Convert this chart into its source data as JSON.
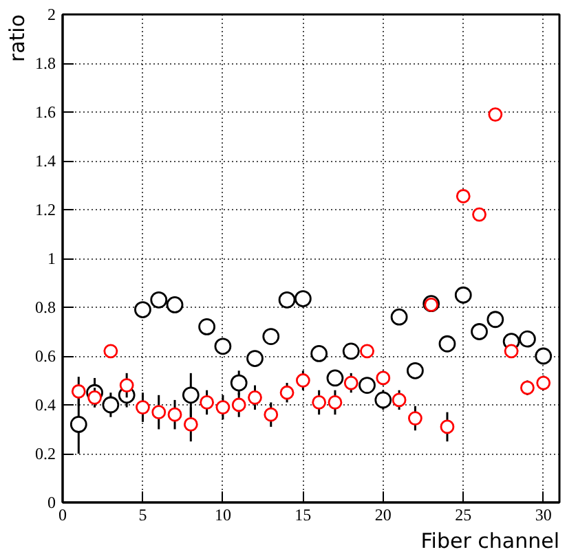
{
  "chart_data": {
    "type": "scatter",
    "xlabel": "Fiber channel",
    "ylabel": "ratio",
    "marker": "circle",
    "grid": true,
    "xlim": [
      0,
      31
    ],
    "ylim": [
      0,
      2
    ],
    "xticks": [
      0,
      5,
      10,
      15,
      20,
      25,
      30
    ],
    "yticks": [
      0,
      0.2,
      0.4,
      0.6,
      0.8,
      1,
      1.2,
      1.4,
      1.6,
      1.8,
      2
    ],
    "x": [
      1,
      2,
      3,
      4,
      5,
      6,
      7,
      8,
      9,
      10,
      11,
      12,
      13,
      14,
      15,
      16,
      17,
      18,
      19,
      20,
      21,
      22,
      23,
      24,
      25,
      26,
      27,
      28,
      29,
      30
    ],
    "series": [
      {
        "color": "#000000",
        "values": [
          0.32,
          0.45,
          0.4,
          0.44,
          0.79,
          0.83,
          0.81,
          0.44,
          0.72,
          0.64,
          0.49,
          0.59,
          0.68,
          0.83,
          0.835,
          0.61,
          0.51,
          0.62,
          0.48,
          0.42,
          0.76,
          0.54,
          0.815,
          0.65,
          0.85,
          0.7,
          0.75,
          0.66,
          0.67,
          0.6
        ],
        "errors": [
          0.12,
          0.06,
          0.05,
          0.05,
          null,
          null,
          null,
          0.09,
          null,
          0.03,
          0.05,
          0.03,
          null,
          null,
          null,
          null,
          0.03,
          null,
          0.03,
          0.04,
          null,
          null,
          null,
          null,
          null,
          null,
          null,
          null,
          null,
          null
        ]
      },
      {
        "color": "#ff0000",
        "values": [
          0.455,
          0.43,
          0.62,
          0.48,
          0.39,
          0.37,
          0.36,
          0.32,
          0.41,
          0.39,
          0.4,
          0.43,
          0.36,
          0.45,
          0.5,
          0.41,
          0.41,
          0.49,
          0.62,
          0.51,
          0.42,
          0.345,
          0.81,
          0.31,
          1.255,
          1.18,
          1.59,
          0.62,
          0.47,
          0.49
        ],
        "errors": [
          0.06,
          0.04,
          null,
          0.05,
          0.06,
          0.07,
          0.06,
          0.07,
          0.05,
          0.05,
          0.05,
          0.05,
          0.05,
          0.04,
          0.04,
          0.05,
          0.05,
          0.04,
          null,
          0.03,
          0.04,
          0.05,
          null,
          0.06,
          null,
          null,
          null,
          null,
          0.03,
          0.03
        ]
      }
    ]
  }
}
